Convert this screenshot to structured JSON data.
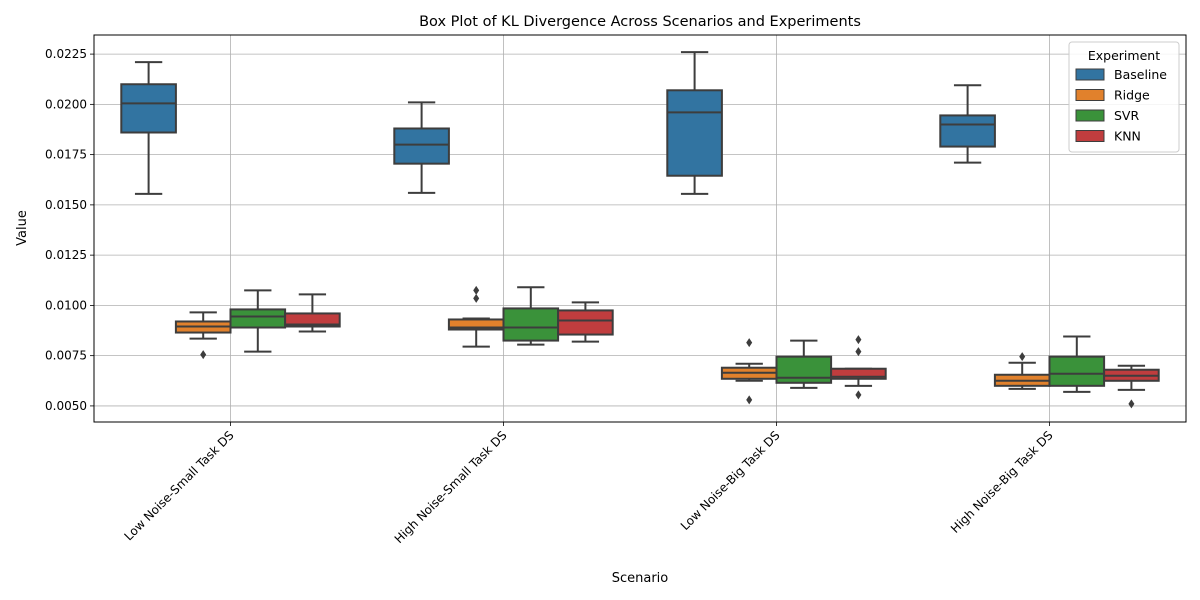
{
  "chart_data": {
    "type": "box",
    "title": "Box Plot of KL Divergence Across Scenarios and Experiments",
    "xlabel": "Scenario",
    "ylabel": "Value",
    "ylim": [
      0.0042,
      0.02345
    ],
    "yticks": [
      "0.0050",
      "0.0075",
      "0.0100",
      "0.0125",
      "0.0150",
      "0.0175",
      "0.0200",
      "0.0225"
    ],
    "ytick_values": [
      0.005,
      0.0075,
      0.01,
      0.0125,
      0.015,
      0.0175,
      0.02,
      0.0225
    ],
    "grid": true,
    "legend_title": "Experiment",
    "legend_position": "top-right",
    "categories": [
      "Low Noise-Small Task DS",
      "High Noise-Small Task DS",
      "Low Noise-Big Task DS",
      "High Noise-Big Task DS"
    ],
    "series": [
      {
        "name": "Baseline",
        "color": "#3274a1",
        "boxes": [
          {
            "whislo": 0.01555,
            "q1": 0.0186,
            "med": 0.02005,
            "q3": 0.021,
            "whishi": 0.0221,
            "fliers": []
          },
          {
            "whislo": 0.0156,
            "q1": 0.01705,
            "med": 0.018,
            "q3": 0.0188,
            "whishi": 0.0201,
            "fliers": []
          },
          {
            "whislo": 0.01555,
            "q1": 0.01645,
            "med": 0.0196,
            "q3": 0.0207,
            "whishi": 0.0226,
            "fliers": []
          },
          {
            "whislo": 0.0171,
            "q1": 0.0179,
            "med": 0.019,
            "q3": 0.01945,
            "whishi": 0.02095,
            "fliers": []
          }
        ]
      },
      {
        "name": "Ridge",
        "color": "#e1812c",
        "boxes": [
          {
            "whislo": 0.00835,
            "q1": 0.00865,
            "med": 0.00895,
            "q3": 0.0092,
            "whishi": 0.00965,
            "fliers": [
              0.00755
            ]
          },
          {
            "whislo": 0.00795,
            "q1": 0.0088,
            "med": 0.0089,
            "q3": 0.0093,
            "whishi": 0.00935,
            "fliers": [
              0.01035,
              0.01075
            ]
          },
          {
            "whislo": 0.00625,
            "q1": 0.00635,
            "med": 0.00665,
            "q3": 0.0069,
            "whishi": 0.0071,
            "fliers": [
              0.0053,
              0.00815
            ]
          },
          {
            "whislo": 0.00585,
            "q1": 0.006,
            "med": 0.00625,
            "q3": 0.00655,
            "whishi": 0.00715,
            "fliers": [
              0.00745
            ]
          }
        ]
      },
      {
        "name": "SVR",
        "color": "#3a923a",
        "boxes": [
          {
            "whislo": 0.0077,
            "q1": 0.0089,
            "med": 0.00945,
            "q3": 0.0098,
            "whishi": 0.01075,
            "fliers": []
          },
          {
            "whislo": 0.00805,
            "q1": 0.00825,
            "med": 0.0089,
            "q3": 0.00985,
            "whishi": 0.0109,
            "fliers": []
          },
          {
            "whislo": 0.0059,
            "q1": 0.00615,
            "med": 0.0064,
            "q3": 0.00745,
            "whishi": 0.00825,
            "fliers": []
          },
          {
            "whislo": 0.0057,
            "q1": 0.006,
            "med": 0.0066,
            "q3": 0.00745,
            "whishi": 0.00845,
            "fliers": []
          }
        ]
      },
      {
        "name": "KNN",
        "color": "#c03d3e",
        "boxes": [
          {
            "whislo": 0.0087,
            "q1": 0.00895,
            "med": 0.00905,
            "q3": 0.0096,
            "whishi": 0.01055,
            "fliers": []
          },
          {
            "whislo": 0.0082,
            "q1": 0.00855,
            "med": 0.00925,
            "q3": 0.00975,
            "whishi": 0.01015,
            "fliers": []
          },
          {
            "whislo": 0.006,
            "q1": 0.00635,
            "med": 0.00645,
            "q3": 0.00685,
            "whishi": 0.00685,
            "fliers": [
              0.00555,
              0.0077,
              0.0083
            ]
          },
          {
            "whislo": 0.0058,
            "q1": 0.00625,
            "med": 0.0065,
            "q3": 0.0068,
            "whishi": 0.007,
            "fliers": [
              0.0051
            ]
          }
        ]
      }
    ]
  }
}
